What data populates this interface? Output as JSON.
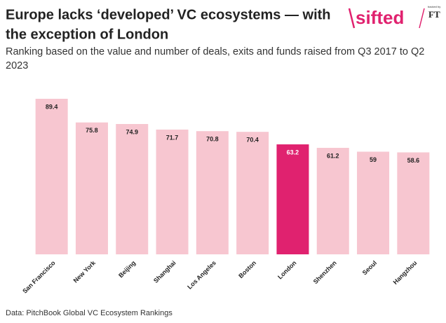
{
  "chart_data": {
    "type": "bar",
    "title": [
      "Europe lacks ‘developed’ VC ecosystems — with",
      "the exception of London"
    ],
    "subtitle": [
      "Ranking based on the value and number of deals, exits and funds raised from Q3 2017 to Q2",
      "2023"
    ],
    "source": "Data: PitchBook Global VC Ecosystem Rankings",
    "categories": [
      "San Francisco",
      "New York",
      "Beijing",
      "Shanghai",
      "Los Angeles",
      "Boston",
      "London",
      "Shenzhen",
      "Seoul",
      "Hangzhou"
    ],
    "values": [
      89.4,
      75.8,
      74.9,
      71.7,
      70.8,
      70.4,
      63.2,
      61.2,
      59,
      58.6
    ],
    "colors": [
      "#f7c6d0",
      "#f7c6d0",
      "#f7c6d0",
      "#f7c6d0",
      "#f7c6d0",
      "#f7c6d0",
      "#e0226f",
      "#f7c6d0",
      "#f7c6d0",
      "#f7c6d0"
    ],
    "ylim": [
      0,
      90
    ]
  },
  "logo": {
    "name": "sifted",
    "backed_by": "backed by",
    "ft": "FT"
  }
}
